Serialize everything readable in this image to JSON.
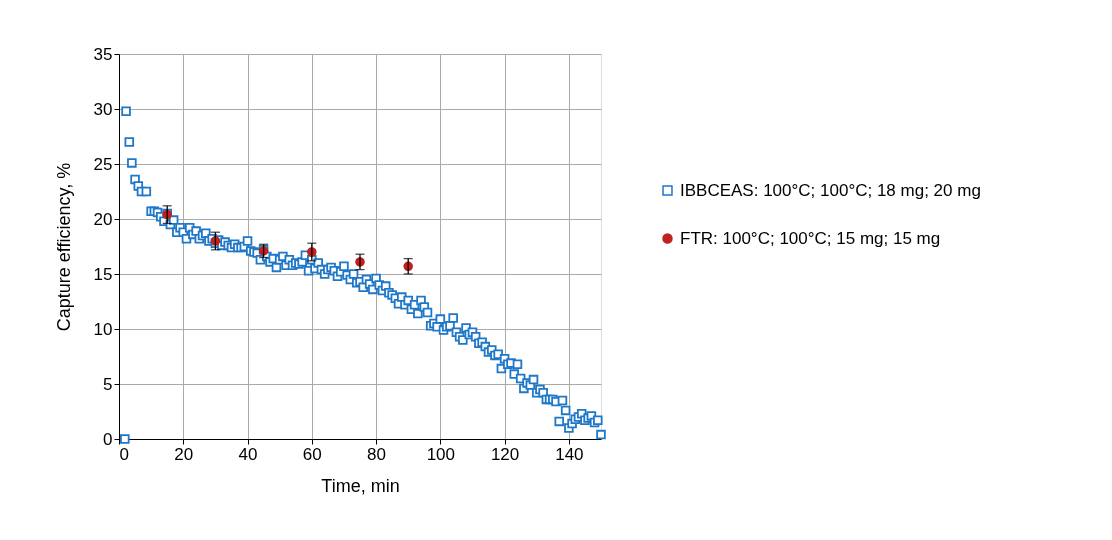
{
  "chart_data": {
    "type": "scatter",
    "xlabel": "Time, min",
    "ylabel": "Capture efficiency, %",
    "xlim": [
      0,
      150
    ],
    "xticks": [
      0,
      20,
      40,
      60,
      80,
      100,
      120,
      140
    ],
    "ylim": [
      0,
      35
    ],
    "yticks": [
      0,
      5,
      10,
      15,
      20,
      25,
      30,
      35
    ],
    "grid": true,
    "legend": "right",
    "series": [
      {
        "name": "IBBCEAS: 100°C; 100°C; 18 mg; 20 mg",
        "color": "#1f77c8",
        "marker": "square",
        "x": [
          1.8,
          2.2,
          3.2,
          4,
          5,
          6,
          7,
          8.5,
          10,
          11,
          12,
          13,
          14,
          15,
          16,
          17,
          18,
          19,
          20,
          21,
          22,
          23,
          24,
          25,
          26,
          27,
          28,
          29,
          30,
          31,
          32,
          33,
          34,
          35,
          36,
          37,
          38,
          39,
          40,
          41,
          42,
          43,
          44,
          45,
          46,
          47,
          48,
          49,
          50,
          51,
          52,
          53,
          54,
          55,
          56,
          57,
          58,
          59,
          60,
          61,
          62,
          63,
          64,
          65,
          66,
          67,
          68,
          69,
          70,
          71,
          72,
          73,
          74,
          75,
          76,
          77,
          78,
          79,
          80,
          81,
          82,
          83,
          84,
          85,
          86,
          87,
          88,
          89,
          90,
          91,
          92,
          93,
          94,
          95,
          96,
          97,
          98,
          99,
          100,
          101,
          102,
          103,
          104,
          105,
          106,
          107,
          108,
          109,
          110,
          111,
          112,
          113,
          114,
          115,
          116,
          117,
          118,
          119,
          120,
          121,
          122,
          123,
          124,
          125,
          126,
          127,
          128,
          129,
          130,
          131,
          132,
          133,
          134,
          135,
          136,
          137,
          138,
          139,
          140,
          141,
          142,
          143,
          144,
          145,
          146,
          147,
          148,
          149,
          150
        ],
        "values": [
          0,
          29.8,
          27.0,
          25.1,
          23.6,
          23,
          22.5,
          22.5,
          20.7,
          20.7,
          20.6,
          20.2,
          19.8,
          20.5,
          19.5,
          19.9,
          18.8,
          19.2,
          18.8,
          18.2,
          19.2,
          18.6,
          18.9,
          18.2,
          18.5,
          18.7,
          18,
          18.2,
          17.8,
          18.1,
          17.6,
          17.9,
          17.6,
          17.4,
          17.7,
          17.4,
          17.4,
          17.5,
          18,
          17.1,
          17,
          16.9,
          16.3,
          17.2,
          16.6,
          16.1,
          16.4,
          15.6,
          16.3,
          16.6,
          15.8,
          16.3,
          15.8,
          16.0,
          15.9,
          16.1,
          16.7,
          15.3,
          16.3,
          15.5,
          16,
          15.4,
          15,
          15.4,
          15.6,
          15.3,
          14.8,
          15.2,
          15.7,
          14.9,
          14.5,
          15,
          14.2,
          14.3,
          13.8,
          14.5,
          14.1,
          13.6,
          14.6,
          14,
          13.5,
          13.9,
          13.3,
          13.1,
          12.8,
          12.3,
          12.9,
          12.2,
          12.6,
          11.8,
          12.2,
          11.4,
          12.6,
          12.0,
          11.5,
          10.3,
          10.5,
          10.2,
          10.9,
          9.9,
          10.2,
          10.3,
          11,
          9.7,
          9.3,
          9.0,
          10.1,
          9.5,
          9.7,
          9.3,
          8.7,
          8.8,
          8.4,
          7.9,
          8.1,
          7.6,
          7.7,
          6.4,
          7.3,
          6.8,
          6.9,
          5.9,
          6.8,
          5.5,
          4.6,
          5.1,
          4.9,
          5.4,
          4.2,
          4.5,
          4.2,
          3.6,
          3.6,
          3.6,
          3.4,
          1.6,
          3.5,
          2.6,
          1.0,
          1.4,
          1.8,
          2.0,
          2.3,
          1.7,
          1.9,
          2.1,
          1.5,
          1.7,
          0.4
        ]
      },
      {
        "name": "FTR: 100°C; 100°C; 15 mg; 15 mg",
        "color": "#c0201e",
        "marker": "circle",
        "x": [
          15,
          30,
          45,
          60,
          75,
          90
        ],
        "values": [
          20.4,
          18.0,
          17.1,
          17.0,
          16.1,
          15.7
        ],
        "errors": [
          0.8,
          0.8,
          0.6,
          0.8,
          0.7,
          0.7
        ]
      }
    ]
  }
}
